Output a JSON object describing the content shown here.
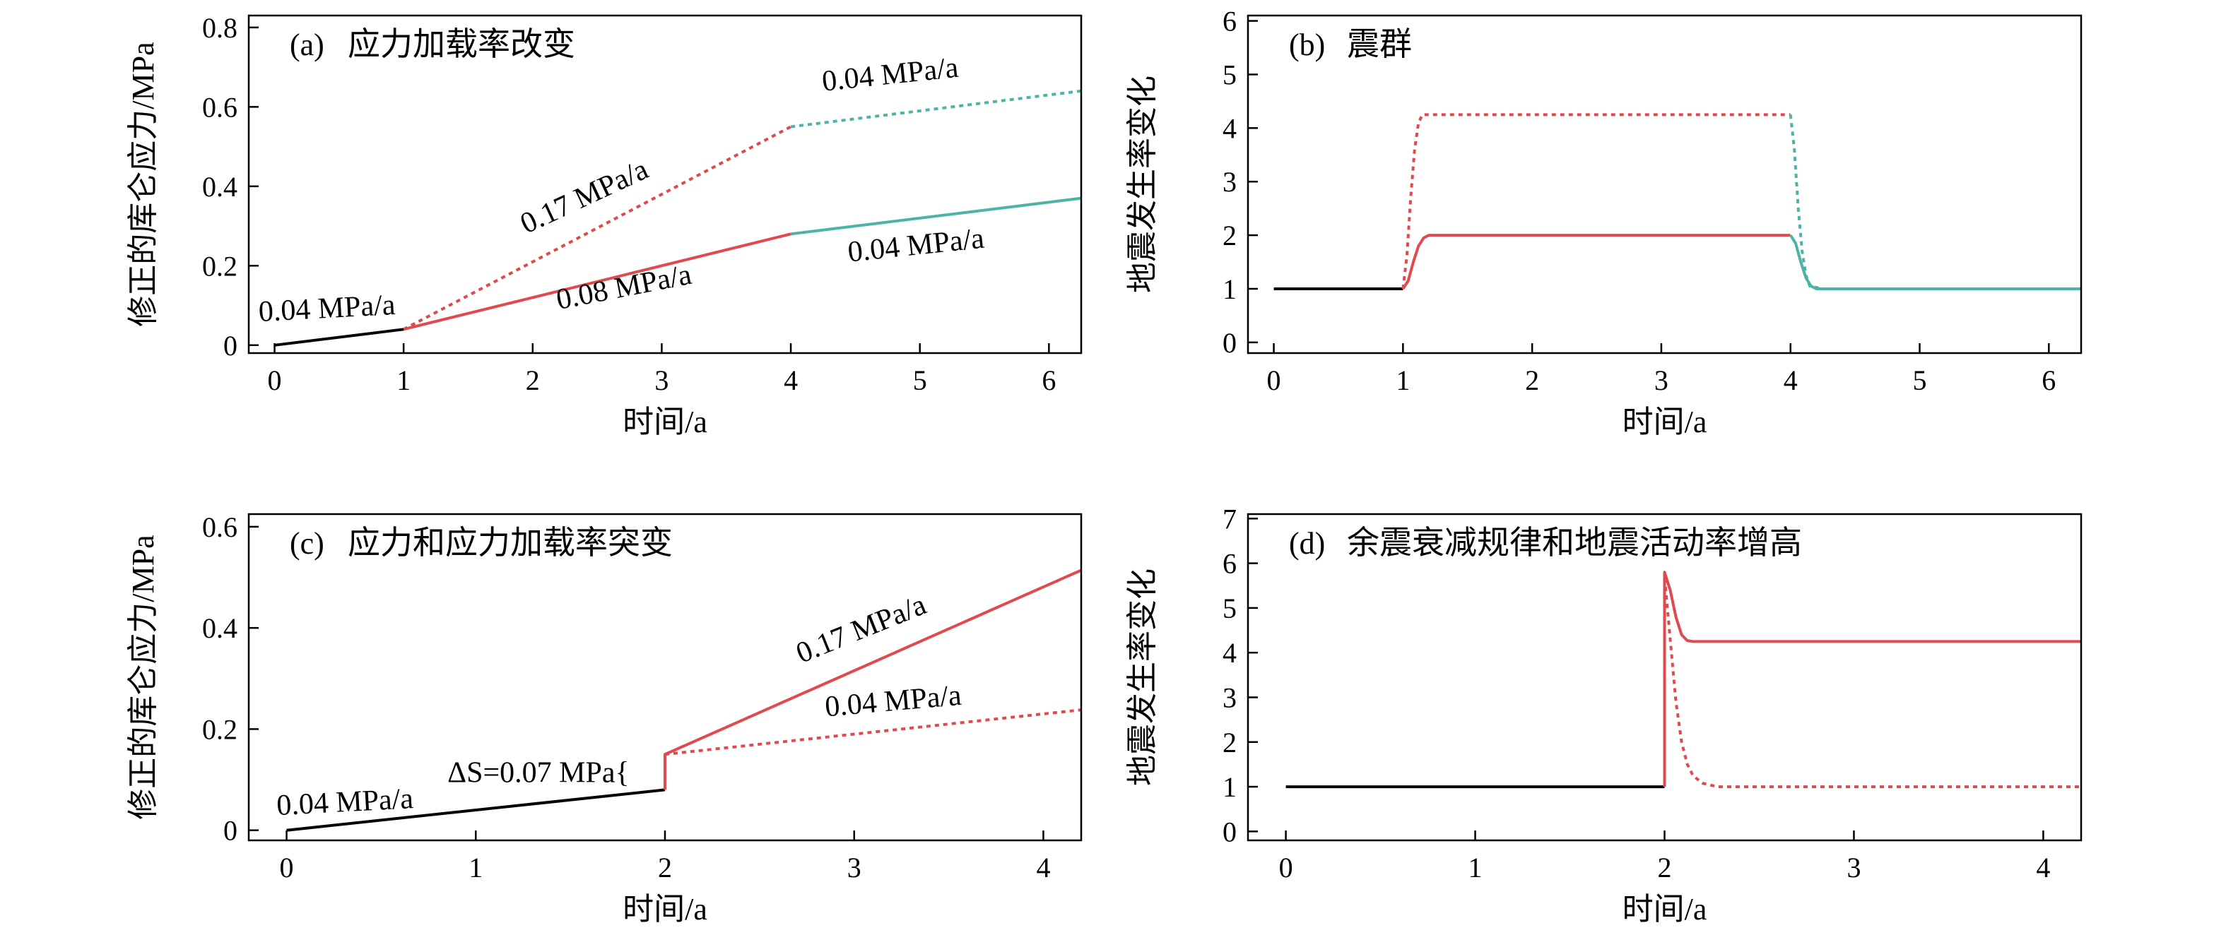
{
  "colors": {
    "black": "#000000",
    "red": "#de4a4f",
    "teal": "#4db3a6"
  },
  "chart_data": [
    {
      "id": "a",
      "type": "line",
      "panel_label": "(a)",
      "title": "应力加载率改变",
      "xlabel": "时间/a",
      "ylabel": "修正的库仑应力/MPa",
      "xlim": [
        -0.2,
        6.25
      ],
      "ylim": [
        -0.02,
        0.83
      ],
      "xticks": [
        0,
        1,
        2,
        3,
        4,
        5,
        6
      ],
      "yticks": [
        0,
        0.2,
        0.4,
        0.6,
        0.8
      ],
      "ytick_labels": [
        "0",
        "0.2",
        "0.4",
        "0.6",
        "0.8"
      ],
      "series": [
        {
          "x": [
            0,
            1
          ],
          "y": [
            0,
            0.04
          ],
          "color": "black",
          "style": "solid"
        },
        {
          "x": [
            1,
            4
          ],
          "y": [
            0.04,
            0.28
          ],
          "color": "red",
          "style": "solid"
        },
        {
          "x": [
            4,
            6.25
          ],
          "y": [
            0.28,
            0.37
          ],
          "color": "teal",
          "style": "solid"
        },
        {
          "x": [
            1,
            4
          ],
          "y": [
            0.04,
            0.55
          ],
          "color": "red",
          "style": "dotted"
        },
        {
          "x": [
            4,
            6.25
          ],
          "y": [
            0.55,
            0.64
          ],
          "color": "teal",
          "style": "dotted"
        }
      ],
      "annotations": [
        {
          "text": "0.04 MPa/a",
          "x": -0.12,
          "y": 0.06,
          "angle": -3
        },
        {
          "text": "0.17 MPa/a",
          "x": 1.95,
          "y": 0.28,
          "angle": -25
        },
        {
          "text": "0.08 MPa/a",
          "x": 2.2,
          "y": 0.09,
          "angle": -11
        },
        {
          "text": "0.04 MPa/a",
          "x": 4.25,
          "y": 0.64,
          "angle": -6
        },
        {
          "text": "0.04 MPa/a",
          "x": 4.45,
          "y": 0.21,
          "angle": -6
        }
      ]
    },
    {
      "id": "b",
      "type": "line",
      "panel_label": "(b)",
      "title": "震群",
      "xlabel": "时间/a",
      "ylabel": "地震发生率变化",
      "xlim": [
        -0.2,
        6.25
      ],
      "ylim": [
        -0.2,
        6.1
      ],
      "xticks": [
        0,
        1,
        2,
        3,
        4,
        5,
        6
      ],
      "yticks": [
        0,
        1,
        2,
        3,
        4,
        5,
        6
      ],
      "ytick_labels": [
        "0",
        "1",
        "2",
        "3",
        "4",
        "5",
        "6"
      ],
      "series": [
        {
          "x": [
            0,
            1
          ],
          "y": [
            1,
            1
          ],
          "color": "black",
          "style": "solid"
        },
        {
          "x": [
            1,
            1.04,
            1.08,
            1.12,
            1.16,
            1.2,
            1.3,
            4
          ],
          "y": [
            1,
            1.15,
            1.5,
            1.8,
            1.95,
            2,
            2,
            2
          ],
          "color": "red",
          "style": "solid"
        },
        {
          "x": [
            4,
            4.04,
            4.08,
            4.12,
            4.16,
            4.2,
            4.3,
            6.25
          ],
          "y": [
            2,
            1.85,
            1.5,
            1.2,
            1.05,
            1.0,
            1.0,
            1.0
          ],
          "color": "teal",
          "style": "solid"
        },
        {
          "x": [
            1,
            1.03,
            1.06,
            1.09,
            1.12,
            1.15,
            4
          ],
          "y": [
            1,
            1.6,
            2.7,
            3.6,
            4.1,
            4.25,
            4.25
          ],
          "color": "red",
          "style": "dotted"
        },
        {
          "x": [
            4,
            4.03,
            4.06,
            4.09,
            4.12,
            4.15,
            4.25,
            6.25
          ],
          "y": [
            4.25,
            3.6,
            2.5,
            1.7,
            1.25,
            1.05,
            1.0,
            1.0
          ],
          "color": "teal",
          "style": "dotted"
        }
      ],
      "annotations": []
    },
    {
      "id": "c",
      "type": "line",
      "panel_label": "(c)",
      "title": "应力和应力加载率突变",
      "xlabel": "时间/a",
      "ylabel": "修正的库仑应力/MPa",
      "xlim": [
        -0.2,
        4.2
      ],
      "ylim": [
        -0.02,
        0.625
      ],
      "xticks": [
        0,
        1,
        2,
        3,
        4
      ],
      "yticks": [
        0,
        0.2,
        0.4,
        0.6
      ],
      "ytick_labels": [
        "0",
        "0.2",
        "0.4",
        "0.6"
      ],
      "series": [
        {
          "x": [
            0,
            2
          ],
          "y": [
            0,
            0.08
          ],
          "color": "black",
          "style": "solid"
        },
        {
          "x": [
            2,
            2,
            4.2
          ],
          "y": [
            0.08,
            0.15,
            0.514
          ],
          "color": "red",
          "style": "solid"
        },
        {
          "x": [
            2,
            4.2
          ],
          "y": [
            0.15,
            0.238
          ],
          "color": "red",
          "style": "dotted"
        }
      ],
      "annotations": [
        {
          "text": "0.04 MPa/a",
          "x": -0.05,
          "y": 0.03,
          "angle": -3
        },
        {
          "text": "ΔS=0.07 MPa{",
          "x": 0.85,
          "y": 0.095,
          "angle": 0
        },
        {
          "text": "0.17 MPa/a",
          "x": 2.72,
          "y": 0.33,
          "angle": -22
        },
        {
          "text": "0.04 MPa/a",
          "x": 2.85,
          "y": 0.225,
          "angle": -5
        }
      ]
    },
    {
      "id": "d",
      "type": "line",
      "panel_label": "(d)",
      "title": "余震衰减规律和地震活动率增高",
      "xlabel": "时间/a",
      "ylabel": "地震发生率变化",
      "xlim": [
        -0.2,
        4.2
      ],
      "ylim": [
        -0.2,
        7.1
      ],
      "xticks": [
        0,
        1,
        2,
        3,
        4
      ],
      "yticks": [
        0,
        1,
        2,
        3,
        4,
        5,
        6,
        7
      ],
      "ytick_labels": [
        "0",
        "1",
        "2",
        "3",
        "4",
        "5",
        "6",
        "7"
      ],
      "series": [
        {
          "x": [
            0,
            2
          ],
          "y": [
            1,
            1
          ],
          "color": "black",
          "style": "solid"
        },
        {
          "x": [
            2,
            2,
            2.03,
            2.06,
            2.09,
            2.12,
            2.15,
            4.2
          ],
          "y": [
            1,
            5.8,
            5.4,
            4.8,
            4.4,
            4.27,
            4.25,
            4.25
          ],
          "color": "red",
          "style": "solid"
        },
        {
          "x": [
            2,
            2,
            2.03,
            2.06,
            2.09,
            2.12,
            2.15,
            2.2,
            2.28,
            4.2
          ],
          "y": [
            1,
            5.7,
            4.3,
            2.9,
            2.0,
            1.5,
            1.25,
            1.08,
            1.0,
            1.0
          ],
          "color": "red",
          "style": "dotted"
        }
      ],
      "annotations": []
    }
  ]
}
